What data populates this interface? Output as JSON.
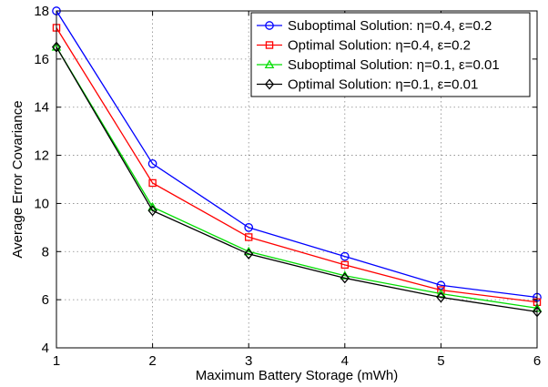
{
  "chart_data": {
    "type": "line",
    "title": "",
    "xlabel": "Maximum Battery Storage (mWh)",
    "ylabel": "Average Error Covariance",
    "x": [
      1,
      2,
      3,
      4,
      5,
      6
    ],
    "xlim": [
      1,
      6
    ],
    "ylim": [
      4,
      18
    ],
    "xticks": [
      "1",
      "2",
      "3",
      "4",
      "5",
      "6"
    ],
    "yticks": [
      "4",
      "6",
      "8",
      "10",
      "12",
      "14",
      "16",
      "18"
    ],
    "grid": true,
    "legend_position": "top-right",
    "series": [
      {
        "name": "Suboptimal Solution: η=0.4, ε=0.2",
        "color": "#0000ff",
        "marker": "circle",
        "values": [
          18.0,
          11.65,
          9.0,
          7.8,
          6.6,
          6.1
        ]
      },
      {
        "name": "Optimal Solution: η=0.4, ε=0.2",
        "color": "#ff0000",
        "marker": "square",
        "values": [
          17.3,
          10.85,
          8.6,
          7.45,
          6.4,
          5.9
        ]
      },
      {
        "name": "Suboptimal Solution: η=0.1, ε=0.01",
        "color": "#00dd00",
        "marker": "triangle",
        "values": [
          16.5,
          9.85,
          8.0,
          7.0,
          6.25,
          5.65
        ]
      },
      {
        "name": "Optimal Solution: η=0.1, ε=0.01",
        "color": "#000000",
        "marker": "diamond",
        "values": [
          16.5,
          9.7,
          7.9,
          6.9,
          6.1,
          5.5
        ]
      }
    ]
  }
}
